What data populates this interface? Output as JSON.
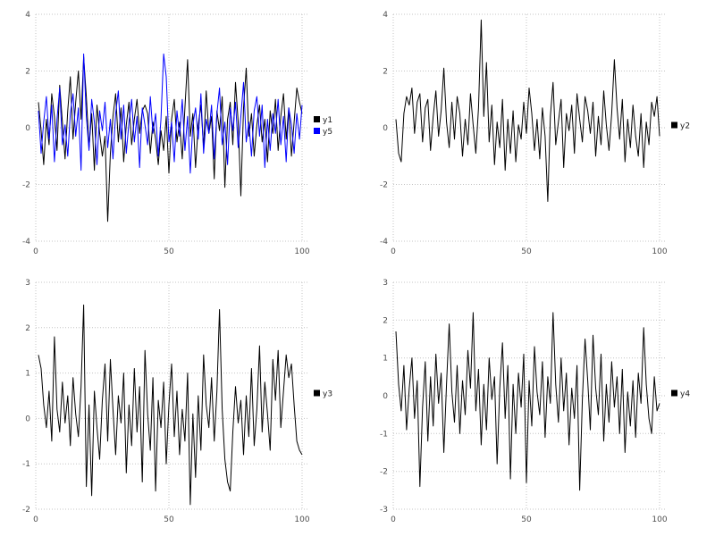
{
  "figure": {
    "background": "#ffffff",
    "grid_color": "#c4c4c4",
    "tick_label_color": "#4d4d4d"
  },
  "chart_data": [
    {
      "type": "line",
      "name": "chart-y1-y5",
      "title": "",
      "xlabel": "",
      "ylabel": "",
      "xlim": [
        0,
        102
      ],
      "ylim": [
        -4,
        4
      ],
      "xticks": [
        0,
        50,
        100
      ],
      "yticks": [
        -4,
        -2,
        0,
        2,
        4
      ],
      "grid": "dotted",
      "legend_position": "right-center",
      "x_start": 1,
      "x_step": 1,
      "series": [
        {
          "name": "y1",
          "color": "#000000",
          "values": [
            0.9,
            -0.1,
            -1.3,
            0.3,
            -0.6,
            1.2,
            0.4,
            -0.8,
            1.5,
            0.2,
            -1.1,
            0.6,
            1.8,
            -0.4,
            0.9,
            2.0,
            0.3,
            2.5,
            1.1,
            -0.7,
            0.5,
            -1.5,
            0.8,
            -0.2,
            -1.0,
            -0.3,
            -3.3,
            -0.9,
            0.4,
            1.2,
            -0.5,
            0.7,
            -1.2,
            0.1,
            0.9,
            -0.6,
            0.3,
            1.0,
            -0.2,
            0.6,
            0.8,
            0.5,
            -0.9,
            0.2,
            -0.4,
            -1.3,
            -0.1,
            -0.8,
            0.4,
            -1.6,
            0.3,
            1.0,
            -0.5,
            0.2,
            -1.1,
            0.7,
            2.4,
            -0.3,
            0.5,
            -1.4,
            0.1,
            0.8,
            -0.7,
            1.3,
            -0.2,
            0.4,
            -1.8,
            0.6,
            -0.1,
            1.1,
            -2.1,
            0.3,
            0.9,
            -0.6,
            1.6,
            0.2,
            -2.4,
            0.7,
            2.1,
            -0.3,
            0.5,
            -1.0,
            0.1,
            0.8,
            -0.5,
            0.3,
            -1.2,
            0.6,
            -0.2,
            1.0,
            -0.8,
            0.4,
            1.2,
            -0.4,
            0.7,
            -1.0,
            0.2,
            1.4,
            0.9,
            0.5
          ]
        },
        {
          "name": "y5",
          "color": "#0000ff",
          "values": [
            0.6,
            -0.9,
            0.2,
            1.1,
            -0.4,
            0.8,
            -1.2,
            0.3,
            1.4,
            -0.6,
            0.1,
            -1.0,
            0.5,
            1.2,
            -0.3,
            0.7,
            -1.5,
            2.6,
            0.4,
            -0.8,
            1.0,
            0.2,
            -1.3,
            0.6,
            -0.1,
            0.9,
            -0.7,
            0.3,
            -1.1,
            0.5,
            1.3,
            -0.4,
            0.8,
            -0.9,
            0.2,
            1.0,
            -0.5,
            0.4,
            -1.4,
            0.7,
            0.1,
            -0.6,
            1.1,
            -0.2,
            0.5,
            -1.0,
            0.3,
            2.6,
            1.8,
            -0.5,
            0.2,
            -1.2,
            0.6,
            -0.3,
            1.0,
            -0.8,
            0.4,
            -1.6,
            0.1,
            0.7,
            -0.4,
            1.2,
            -0.9,
            0.3,
            -0.2,
            0.8,
            -1.1,
            0.5,
            1.4,
            -0.6,
            0.2,
            -1.3,
            0.7,
            -0.1,
            0.9,
            -0.7,
            0.4,
            1.6,
            -0.5,
            0.2,
            -1.0,
            0.6,
            1.1,
            -0.3,
            0.8,
            -1.4,
            0.3,
            -0.8,
            0.5,
            -0.2,
            1.0,
            -0.6,
            0.4,
            -1.2,
            0.7,
            0.1,
            -0.9,
            0.5,
            -0.4,
            0.8
          ]
        }
      ]
    },
    {
      "type": "line",
      "name": "chart-y2",
      "title": "",
      "xlabel": "",
      "ylabel": "",
      "xlim": [
        0,
        102
      ],
      "ylim": [
        -4,
        4
      ],
      "xticks": [
        0,
        50,
        100
      ],
      "yticks": [
        -4,
        -2,
        0,
        2,
        4
      ],
      "grid": "dotted",
      "legend_position": "right-center",
      "x_start": 1,
      "x_step": 1,
      "series": [
        {
          "name": "y2",
          "color": "#000000",
          "values": [
            0.3,
            -0.9,
            -1.2,
            0.5,
            1.1,
            0.8,
            1.4,
            -0.2,
            0.9,
            1.2,
            -0.5,
            0.7,
            1.0,
            -0.8,
            0.4,
            1.3,
            -0.3,
            0.6,
            2.1,
            0.2,
            -0.7,
            0.9,
            -0.4,
            1.1,
            0.5,
            -1.0,
            0.3,
            -0.6,
            1.2,
            0.1,
            -0.9,
            0.7,
            3.8,
            0.4,
            2.3,
            -0.5,
            0.8,
            -1.3,
            0.2,
            -0.7,
            1.0,
            -1.5,
            0.3,
            -0.9,
            0.6,
            -1.2,
            0.1,
            -0.4,
            0.9,
            -0.2,
            1.4,
            0.5,
            -0.8,
            0.3,
            -1.1,
            0.7,
            -0.3,
            -2.6,
            0.4,
            1.6,
            -0.6,
            0.2,
            1.0,
            -1.4,
            0.5,
            -0.1,
            0.8,
            -0.9,
            1.2,
            0.3,
            -0.5,
            1.1,
            0.6,
            -0.2,
            0.9,
            -1.0,
            0.4,
            -0.6,
            1.3,
            0.1,
            -0.8,
            0.5,
            2.4,
            0.7,
            -0.4,
            1.0,
            -1.2,
            0.3,
            -0.7,
            0.8,
            -0.3,
            -1.0,
            0.5,
            -1.4,
            0.2,
            -0.6,
            0.9,
            0.4,
            1.1,
            -0.3
          ]
        }
      ]
    },
    {
      "type": "line",
      "name": "chart-y3",
      "title": "",
      "xlabel": "",
      "ylabel": "",
      "xlim": [
        0,
        102
      ],
      "ylim": [
        -2,
        3
      ],
      "xticks": [
        0,
        50,
        100
      ],
      "yticks": [
        -2,
        -1,
        0,
        1,
        2,
        3
      ],
      "grid": "dotted",
      "legend_position": "right-center",
      "x_start": 1,
      "x_step": 1,
      "series": [
        {
          "name": "y3",
          "color": "#000000",
          "values": [
            1.4,
            1.1,
            0.3,
            -0.2,
            0.6,
            -0.5,
            1.8,
            0.2,
            -0.3,
            0.8,
            -0.1,
            0.5,
            -0.6,
            0.9,
            0.1,
            -0.4,
            0.7,
            2.5,
            -1.5,
            0.3,
            -1.7,
            0.6,
            -0.2,
            -0.9,
            0.4,
            1.2,
            -0.5,
            1.3,
            0.2,
            -0.8,
            0.5,
            -0.1,
            1.0,
            -1.2,
            0.3,
            -0.6,
            1.1,
            -0.3,
            0.7,
            -1.4,
            1.5,
            0.1,
            -0.7,
            0.9,
            -1.6,
            0.4,
            -0.2,
            0.8,
            -1.0,
            0.3,
            1.2,
            -0.4,
            0.6,
            -0.8,
            0.2,
            -0.5,
            1.0,
            -1.9,
            0.1,
            -1.3,
            0.5,
            -0.7,
            1.4,
            0.3,
            -0.2,
            0.9,
            -0.5,
            0.6,
            2.4,
            0.2,
            -0.9,
            -1.4,
            -1.6,
            -0.3,
            0.7,
            -0.1,
            0.4,
            -0.8,
            0.5,
            -0.4,
            1.1,
            -0.6,
            0.2,
            1.6,
            -0.3,
            0.8,
            0.1,
            -0.7,
            1.3,
            0.4,
            1.5,
            -0.2,
            0.6,
            1.4,
            0.9,
            1.2,
            0.3,
            -0.5,
            -0.7,
            -0.8
          ]
        }
      ]
    },
    {
      "type": "line",
      "name": "chart-y4",
      "title": "",
      "xlabel": "",
      "ylabel": "",
      "xlim": [
        0,
        102
      ],
      "ylim": [
        -3,
        3
      ],
      "xticks": [
        0,
        50,
        100
      ],
      "yticks": [
        -3,
        -2,
        -1,
        0,
        1,
        2,
        3
      ],
      "grid": "dotted",
      "legend_position": "right-center",
      "x_start": 1,
      "x_step": 1,
      "series": [
        {
          "name": "y4",
          "color": "#000000",
          "values": [
            1.7,
            0.3,
            -0.4,
            0.8,
            -0.9,
            0.2,
            1.0,
            -0.6,
            0.4,
            -2.4,
            -0.3,
            0.9,
            -1.2,
            0.5,
            -0.8,
            1.1,
            -0.2,
            0.6,
            -1.5,
            0.3,
            1.9,
            0.1,
            -0.7,
            0.8,
            -1.0,
            0.4,
            -0.5,
            1.2,
            0.2,
            2.2,
            -0.4,
            0.7,
            -1.3,
            0.3,
            -0.9,
            1.0,
            -0.1,
            0.5,
            -1.8,
            0.2,
            1.4,
            -0.6,
            0.8,
            -2.2,
            0.3,
            -1.0,
            0.6,
            -0.3,
            1.1,
            -2.3,
            0.4,
            -0.8,
            1.3,
            0.1,
            -0.5,
            0.9,
            -1.1,
            0.5,
            -0.2,
            2.2,
            0.3,
            -0.7,
            1.0,
            -0.4,
            0.6,
            -1.3,
            0.2,
            -0.6,
            0.8,
            -2.5,
            -0.1,
            1.5,
            0.4,
            -0.9,
            1.6,
            0.2,
            -0.5,
            1.1,
            -1.2,
            0.3,
            -0.7,
            0.9,
            -0.3,
            0.5,
            -1.0,
            0.7,
            -1.5,
            0.1,
            -0.8,
            0.4,
            -1.1,
            0.6,
            -0.2,
            1.8,
            0.3,
            -0.6,
            -1.0,
            0.5,
            -0.4,
            -0.2
          ]
        }
      ]
    }
  ]
}
